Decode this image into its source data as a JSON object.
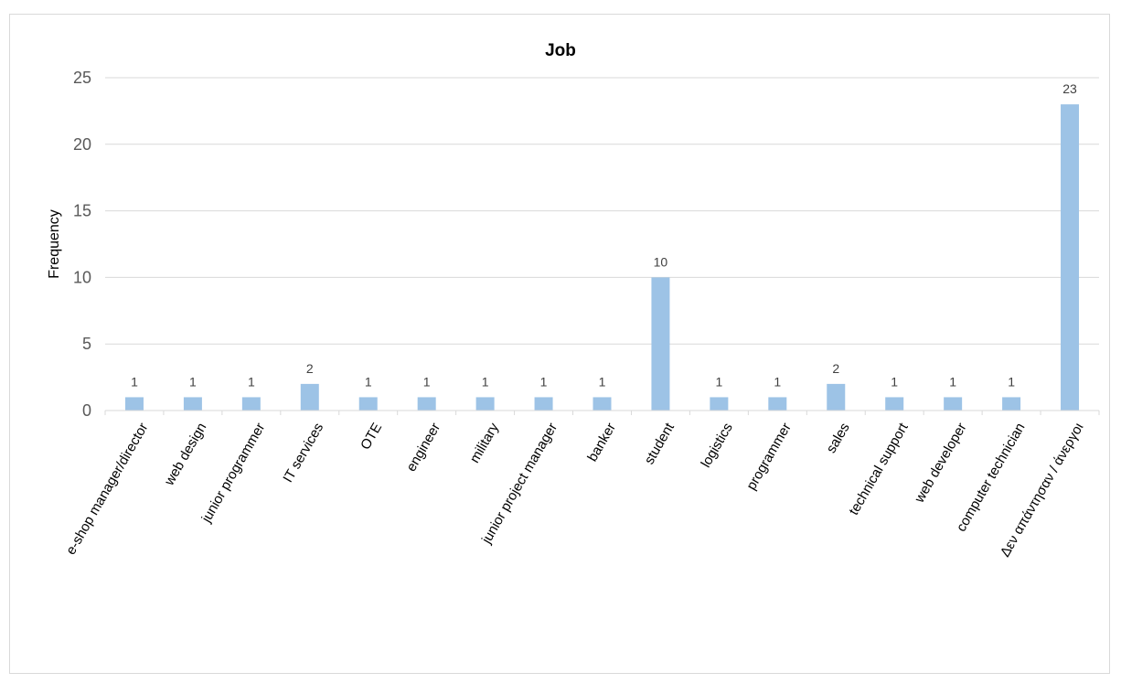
{
  "chart_data": {
    "type": "bar",
    "title": "Job",
    "xlabel": "",
    "ylabel": "Frequency",
    "ylim": [
      0,
      25
    ],
    "yticks": [
      0,
      5,
      10,
      15,
      20,
      25
    ],
    "grid": true,
    "legend": "none",
    "bar_color": "#9dc3e6",
    "categories": [
      "e-shop manager/director",
      "web design",
      "junior programmer",
      "IT services",
      "OTE",
      "engineer",
      "military",
      "junior project manager",
      "banker",
      "student",
      "logistics",
      "programmer",
      "sales",
      "technical support",
      "web developer",
      "computer technician",
      "Δεν απάντησαν / άνεργοι"
    ],
    "values": [
      1,
      1,
      1,
      2,
      1,
      1,
      1,
      1,
      1,
      10,
      1,
      1,
      2,
      1,
      1,
      1,
      23
    ]
  }
}
